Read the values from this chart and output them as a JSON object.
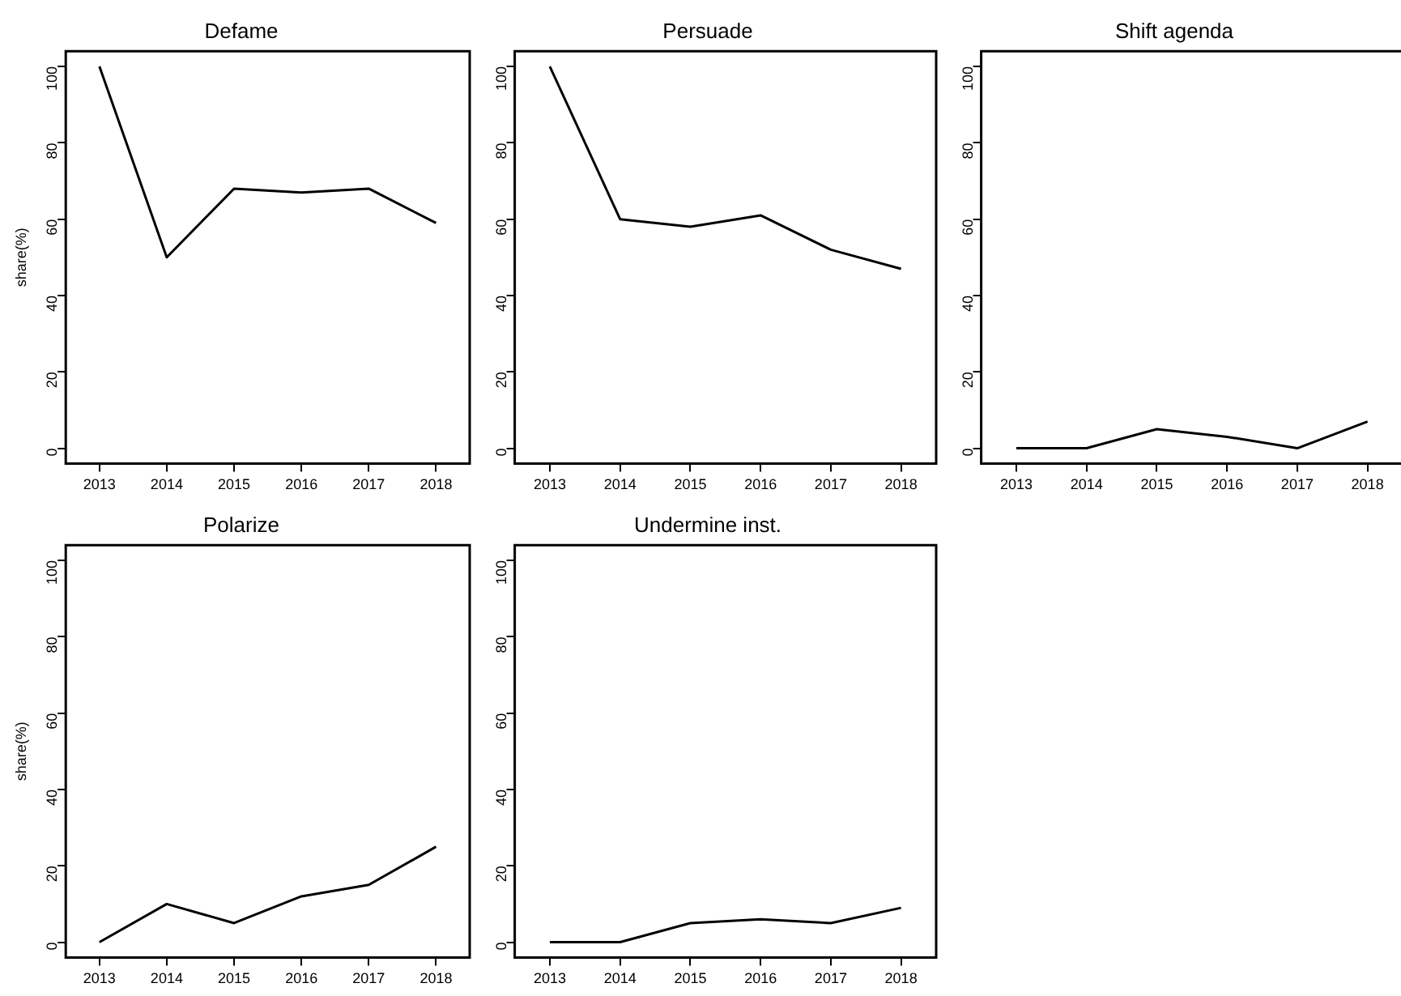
{
  "chart_data": [
    {
      "type": "line",
      "title": "Defame",
      "ylabel": "share(%)",
      "categories": [
        "2013",
        "2014",
        "2015",
        "2016",
        "2017",
        "2018"
      ],
      "series": [
        {
          "color": "#000000",
          "values": [
            100,
            50,
            68,
            67,
            68,
            59
          ]
        }
      ],
      "ylim": [
        -4,
        104
      ],
      "yticks": [
        0,
        20,
        40,
        60,
        80,
        100
      ],
      "grid": false,
      "legend": false,
      "marker": "none",
      "line_style": "solid"
    },
    {
      "type": "line",
      "title": "Persuade",
      "categories": [
        "2013",
        "2014",
        "2015",
        "2016",
        "2017",
        "2018"
      ],
      "series": [
        {
          "color": "#000000",
          "values": [
            100,
            60,
            58,
            61,
            52,
            47
          ]
        }
      ],
      "ylim": [
        -4,
        104
      ],
      "yticks": [
        0,
        20,
        40,
        60,
        80,
        100
      ],
      "grid": false,
      "legend": false,
      "marker": "none",
      "line_style": "solid"
    },
    {
      "type": "line",
      "title": "Shift agenda",
      "categories": [
        "2013",
        "2014",
        "2015",
        "2016",
        "2017",
        "2018"
      ],
      "series": [
        {
          "color": "#000000",
          "values": [
            0,
            0,
            5,
            3,
            0,
            7
          ]
        }
      ],
      "ylim": [
        -4,
        104
      ],
      "yticks": [
        0,
        20,
        40,
        60,
        80,
        100
      ],
      "grid": false,
      "legend": false,
      "marker": "none",
      "line_style": "solid"
    },
    {
      "type": "line",
      "title": "Polarize",
      "ylabel": "share(%)",
      "categories": [
        "2013",
        "2014",
        "2015",
        "2016",
        "2017",
        "2018"
      ],
      "series": [
        {
          "color": "#000000",
          "values": [
            0,
            10,
            5,
            12,
            15,
            25
          ]
        }
      ],
      "ylim": [
        -4,
        104
      ],
      "yticks": [
        0,
        20,
        40,
        60,
        80,
        100
      ],
      "grid": false,
      "legend": false,
      "marker": "none",
      "line_style": "solid"
    },
    {
      "type": "line",
      "title": "Undermine inst.",
      "categories": [
        "2013",
        "2014",
        "2015",
        "2016",
        "2017",
        "2018"
      ],
      "series": [
        {
          "color": "#000000",
          "values": [
            0,
            0,
            5,
            6,
            5,
            9
          ]
        }
      ],
      "ylim": [
        -4,
        104
      ],
      "yticks": [
        0,
        20,
        40,
        60,
        80,
        100
      ],
      "grid": false,
      "legend": false,
      "marker": "none",
      "line_style": "solid"
    }
  ]
}
